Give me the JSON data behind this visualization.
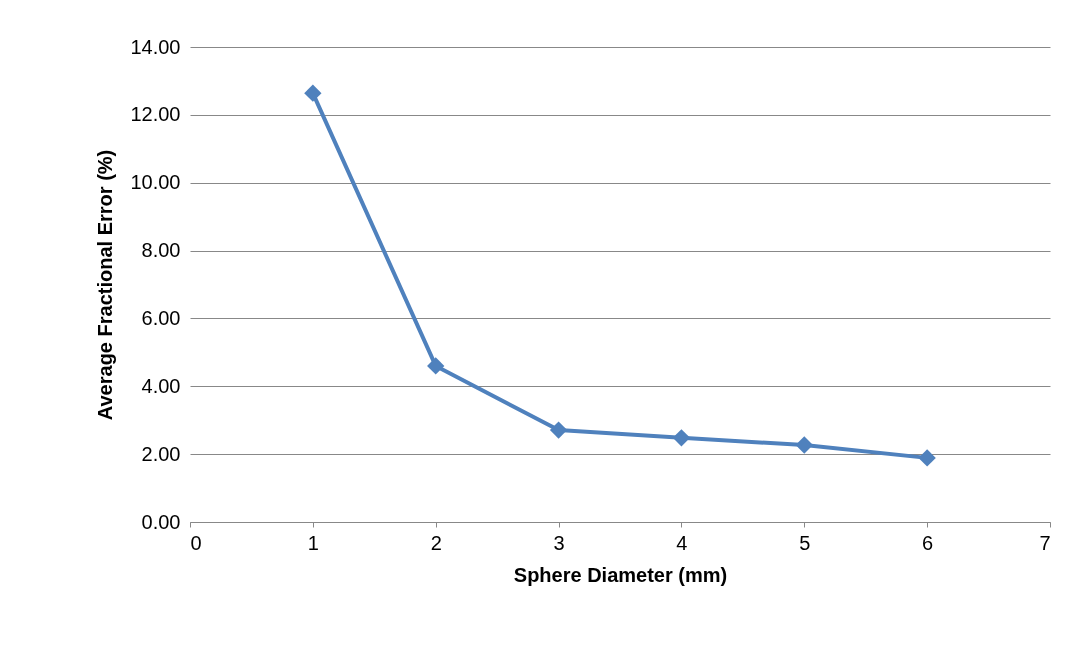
{
  "chart_data": {
    "type": "line",
    "xlabel": "Sphere Diameter (mm)",
    "ylabel": "Average Fractional Error (%)",
    "x": [
      1,
      2,
      3,
      4,
      5,
      6
    ],
    "series": [
      {
        "color": "#4f81bd",
        "values": [
          12.64,
          4.6,
          2.71,
          2.48,
          2.27,
          1.89
        ]
      }
    ],
    "xlim": [
      0,
      7
    ],
    "xticks": [
      0,
      1,
      2,
      3,
      4,
      5,
      6,
      7
    ],
    "ylim": [
      0,
      14
    ],
    "yticks": [
      {
        "value": 0,
        "label": "0.00"
      },
      {
        "value": 2,
        "label": "2.00"
      },
      {
        "value": 4,
        "label": "4.00"
      },
      {
        "value": 6,
        "label": "6.00"
      },
      {
        "value": 8,
        "label": "8.00"
      },
      {
        "value": 10,
        "label": "10.00"
      },
      {
        "value": 12,
        "label": "12.00"
      },
      {
        "value": 14,
        "label": "14.00"
      }
    ],
    "grid": "y",
    "marker": "diamond",
    "line_style": "solid"
  }
}
